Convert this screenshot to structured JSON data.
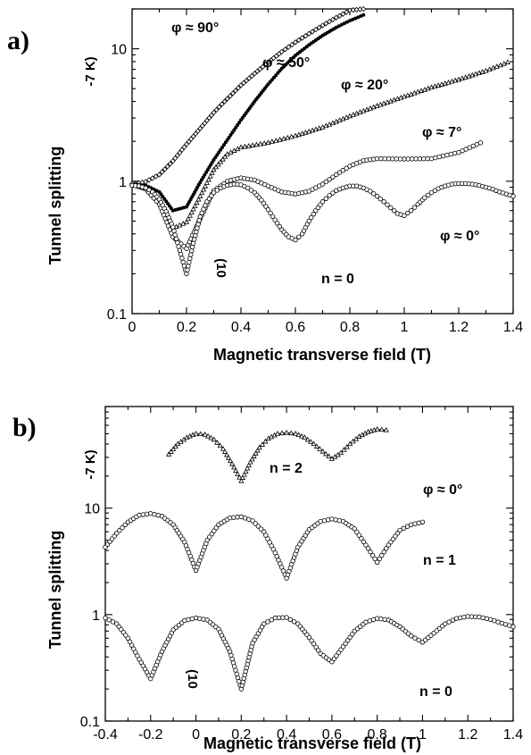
{
  "chart_data": [
    {
      "panel_label": "a)",
      "type": "line",
      "xlabel": "Magnetic transverse field (T)",
      "ylabel_main": "Tunnel splitting",
      "ylabel_unit_top": "-7 K)",
      "ylabel_unit_bottom": "(10",
      "xlim": [
        0,
        1.4
      ],
      "ylim": [
        0.1,
        20
      ],
      "yscale": "log",
      "xticks": [
        0,
        0.2,
        0.4,
        0.6,
        0.8,
        1,
        1.2,
        1.4
      ],
      "xtick_labels": [
        "0",
        "0.2",
        "0.4",
        "0.6",
        "0.8",
        "1",
        "1.2",
        "1.4"
      ],
      "yticks": [
        0.1,
        1,
        10
      ],
      "ytick_labels": [
        "0.1",
        "1",
        "10"
      ],
      "annotation": "n = 0",
      "series": [
        {
          "name": "φ ≈ 90°",
          "marker": "diamond",
          "x": [
            0,
            0.05,
            0.1,
            0.15,
            0.2,
            0.25,
            0.3,
            0.35,
            0.4,
            0.45,
            0.5,
            0.55,
            0.6,
            0.65,
            0.7,
            0.75,
            0.8,
            0.85
          ],
          "y": [
            0.95,
            0.99,
            1.12,
            1.42,
            1.9,
            2.5,
            3.3,
            4.2,
            5.3,
            6.5,
            7.9,
            9.5,
            11.2,
            13,
            15,
            17.2,
            19.5,
            20
          ]
        },
        {
          "name": "φ ≈ 50°",
          "marker": "dot",
          "x": [
            0,
            0.05,
            0.1,
            0.15,
            0.2,
            0.25,
            0.3,
            0.35,
            0.4,
            0.45,
            0.5,
            0.55,
            0.6,
            0.65,
            0.7,
            0.75,
            0.8,
            0.85
          ],
          "y": [
            0.95,
            0.93,
            0.83,
            0.6,
            0.64,
            0.98,
            1.45,
            2.05,
            2.9,
            4,
            5.4,
            7.1,
            8.9,
            10.7,
            12.6,
            14.5,
            16.3,
            18
          ]
        },
        {
          "name": "φ ≈ 20°",
          "marker": "triangle",
          "x": [
            0,
            0.05,
            0.1,
            0.15,
            0.2,
            0.25,
            0.3,
            0.35,
            0.4,
            0.5,
            0.6,
            0.7,
            0.8,
            0.9,
            1,
            1.1,
            1.2,
            1.3,
            1.38
          ],
          "y": [
            0.95,
            0.88,
            0.7,
            0.44,
            0.49,
            0.77,
            1.22,
            1.6,
            1.8,
            1.95,
            2.2,
            2.55,
            3.1,
            3.7,
            4.35,
            5.1,
            5.85,
            6.8,
            7.9
          ]
        },
        {
          "name": "φ ≈ 7°",
          "marker": "circle",
          "x": [
            0,
            0.05,
            0.1,
            0.15,
            0.2,
            0.25,
            0.3,
            0.35,
            0.4,
            0.45,
            0.5,
            0.55,
            0.6,
            0.65,
            0.7,
            0.75,
            0.8,
            0.85,
            0.9,
            1,
            1.1,
            1.2,
            1.28
          ],
          "y": [
            0.95,
            0.87,
            0.67,
            0.38,
            0.31,
            0.52,
            0.85,
            1.0,
            1.06,
            1.02,
            0.92,
            0.83,
            0.8,
            0.84,
            0.95,
            1.12,
            1.3,
            1.43,
            1.48,
            1.47,
            1.48,
            1.65,
            1.95
          ]
        },
        {
          "name": "φ ≈ 0°",
          "marker": "circle",
          "x": [
            0,
            0.025,
            0.05,
            0.075,
            0.1,
            0.125,
            0.15,
            0.175,
            0.2,
            0.225,
            0.25,
            0.275,
            0.3,
            0.325,
            0.35,
            0.375,
            0.4,
            0.425,
            0.45,
            0.475,
            0.5,
            0.525,
            0.55,
            0.575,
            0.6,
            0.625,
            0.65,
            0.675,
            0.7,
            0.725,
            0.75,
            0.775,
            0.8,
            0.825,
            0.85,
            0.875,
            0.9,
            0.925,
            0.95,
            0.975,
            1,
            1.025,
            1.05,
            1.075,
            1.1,
            1.125,
            1.15,
            1.175,
            1.2,
            1.225,
            1.25,
            1.275,
            1.3,
            1.325,
            1.35,
            1.375,
            1.4
          ],
          "y": [
            0.93,
            0.92,
            0.89,
            0.83,
            0.73,
            0.59,
            0.45,
            0.3,
            0.2,
            0.34,
            0.54,
            0.7,
            0.82,
            0.89,
            0.93,
            0.95,
            0.94,
            0.89,
            0.82,
            0.72,
            0.61,
            0.51,
            0.43,
            0.38,
            0.36,
            0.4,
            0.5,
            0.6,
            0.7,
            0.78,
            0.85,
            0.89,
            0.92,
            0.92,
            0.89,
            0.84,
            0.77,
            0.7,
            0.63,
            0.57,
            0.55,
            0.6,
            0.67,
            0.75,
            0.82,
            0.88,
            0.92,
            0.95,
            0.96,
            0.96,
            0.95,
            0.93,
            0.9,
            0.87,
            0.83,
            0.8,
            0.77
          ]
        }
      ],
      "legend": "inline labels"
    },
    {
      "panel_label": "b)",
      "type": "line",
      "xlabel": "Magnetic transverse field (T)",
      "ylabel_main": "Tunnel splitting",
      "ylabel_unit_top": "-7 K)",
      "ylabel_unit_bottom": "(10",
      "xlim": [
        -0.4,
        1.4
      ],
      "ylim": [
        0.1,
        90
      ],
      "yscale": "log",
      "xticks": [
        -0.4,
        -0.2,
        0,
        0.2,
        0.4,
        0.6,
        0.8,
        1,
        1.2,
        1.4
      ],
      "xtick_labels": [
        "-0.4",
        "-0.2",
        "0",
        "0.2",
        "0.4",
        "0.6",
        "0.8",
        "1",
        "1.2",
        "1.4"
      ],
      "yticks": [
        0.1,
        1,
        10
      ],
      "ytick_labels": [
        "0.1",
        "1",
        "10"
      ],
      "annotation_phi": "φ ≈ 0°",
      "series": [
        {
          "name": "n = 2",
          "marker": "triangle",
          "x": [
            -0.12,
            -0.08,
            -0.04,
            0,
            0.04,
            0.08,
            0.12,
            0.16,
            0.2,
            0.24,
            0.28,
            0.32,
            0.36,
            0.4,
            0.44,
            0.48,
            0.52,
            0.56,
            0.6,
            0.64,
            0.68,
            0.72,
            0.76,
            0.8,
            0.84
          ],
          "y": [
            32,
            40,
            46,
            50,
            49,
            44,
            36,
            26,
            18,
            27,
            37,
            45,
            50,
            51,
            50,
            46,
            40,
            34,
            29,
            33,
            40,
            47,
            52,
            55,
            54
          ]
        },
        {
          "name": "n = 1",
          "marker": "circle",
          "x": [
            -0.4,
            -0.35,
            -0.3,
            -0.25,
            -0.2,
            -0.15,
            -0.1,
            -0.05,
            0,
            0.05,
            0.1,
            0.15,
            0.2,
            0.25,
            0.3,
            0.35,
            0.4,
            0.45,
            0.5,
            0.55,
            0.6,
            0.65,
            0.7,
            0.75,
            0.8,
            0.85,
            0.9,
            0.95,
            1
          ],
          "y": [
            4.3,
            5.8,
            7.4,
            8.6,
            8.9,
            8.4,
            7,
            4.8,
            2.6,
            5,
            7,
            8.1,
            8.3,
            7.6,
            6,
            3.8,
            2.2,
            4.3,
            6.3,
            7.5,
            7.9,
            7.5,
            6.4,
            4.5,
            3.1,
            4.5,
            6.2,
            7,
            7.4
          ]
        },
        {
          "name": "n = 0",
          "marker": "circle",
          "x": [
            -0.4,
            -0.35,
            -0.3,
            -0.25,
            -0.2,
            -0.15,
            -0.1,
            -0.05,
            0,
            0.05,
            0.1,
            0.15,
            0.2,
            0.25,
            0.3,
            0.35,
            0.4,
            0.45,
            0.5,
            0.55,
            0.6,
            0.65,
            0.7,
            0.75,
            0.8,
            0.85,
            0.9,
            0.95,
            1,
            1.05,
            1.1,
            1.15,
            1.2,
            1.25,
            1.3,
            1.35,
            1.4
          ],
          "y": [
            0.93,
            0.82,
            0.6,
            0.38,
            0.25,
            0.45,
            0.72,
            0.88,
            0.93,
            0.89,
            0.73,
            0.45,
            0.2,
            0.54,
            0.82,
            0.93,
            0.94,
            0.82,
            0.61,
            0.43,
            0.36,
            0.5,
            0.7,
            0.85,
            0.92,
            0.89,
            0.77,
            0.63,
            0.55,
            0.67,
            0.82,
            0.92,
            0.96,
            0.95,
            0.9,
            0.83,
            0.77
          ]
        }
      ],
      "legend": "inline labels"
    }
  ]
}
